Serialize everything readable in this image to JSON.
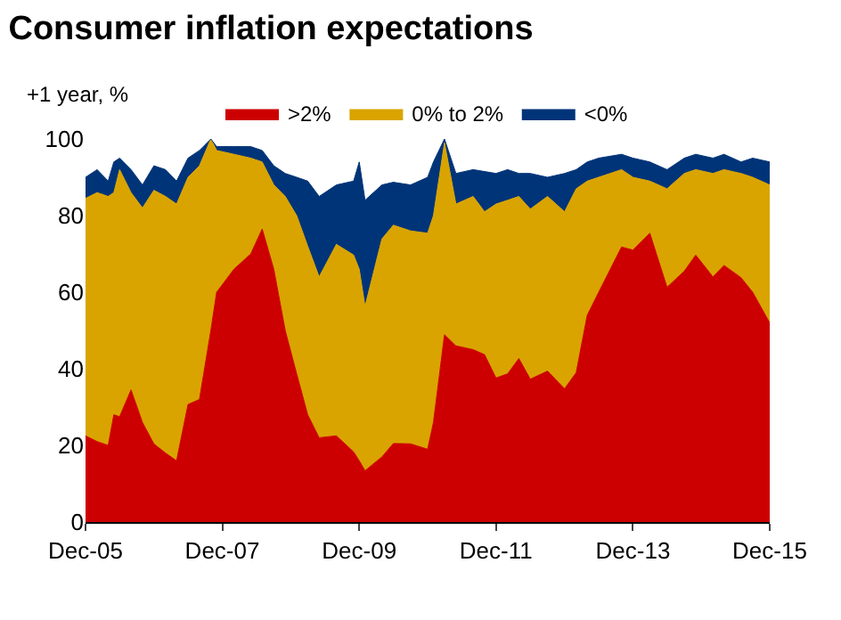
{
  "chart_data": {
    "type": "area",
    "stacked": true,
    "title": "Consumer inflation expectations",
    "ylabel": "+1 year, %",
    "x": [
      "2005-12",
      "2006-02",
      "2006-04",
      "2006-05",
      "2006-06",
      "2006-08",
      "2006-10",
      "2006-12",
      "2007-02",
      "2007-04",
      "2007-06",
      "2007-08",
      "2007-10",
      "2007-11",
      "2008-02",
      "2008-05",
      "2008-07",
      "2008-09",
      "2008-11",
      "2009-01",
      "2009-03",
      "2009-05",
      "2009-08",
      "2009-11",
      "2009-12",
      "2010-01",
      "2010-04",
      "2010-06",
      "2010-09",
      "2010-12",
      "2011-01",
      "2011-03",
      "2011-05",
      "2011-08",
      "2011-10",
      "2011-12",
      "2012-02",
      "2012-04",
      "2012-06",
      "2012-09",
      "2012-12",
      "2013-02",
      "2013-04",
      "2013-06",
      "2013-10",
      "2013-12",
      "2014-03",
      "2014-06",
      "2014-09",
      "2014-11",
      "2015-02",
      "2015-04",
      "2015-07",
      "2015-09",
      "2015-12"
    ],
    "series": [
      {
        "name": ">2%",
        "color": "#cc0000",
        "values": [
          22.5,
          21,
          20,
          28,
          27.5,
          34.5,
          26,
          20.4,
          18,
          16,
          30.7,
          32,
          50,
          60,
          66,
          70,
          76.5,
          66,
          50,
          38.7,
          28,
          22,
          22.5,
          18.3,
          16,
          13.4,
          17,
          20.5,
          20.4,
          19,
          26,
          48.9,
          46,
          45,
          43.7,
          37.6,
          38.7,
          42.7,
          37.3,
          39.4,
          34.8,
          39,
          54,
          60,
          71.8,
          71,
          75.4,
          61.3,
          65.5,
          69.7,
          64,
          67,
          63.8,
          60,
          52
        ]
      },
      {
        "name": "0% to 2%",
        "color": "#d9a400",
        "values": [
          62,
          65,
          65,
          58,
          64.5,
          51.5,
          56,
          66.2,
          67,
          67,
          59.3,
          61,
          50,
          37,
          30,
          25,
          17.5,
          22,
          35,
          41.3,
          44,
          42,
          50,
          51.4,
          50,
          42.9,
          56.9,
          57,
          55.6,
          56.4,
          54,
          50.1,
          37,
          40,
          37.3,
          45.4,
          45.3,
          42.3,
          44.4,
          45.6,
          46.2,
          48,
          35,
          30,
          20.2,
          19,
          13.6,
          25.7,
          25.5,
          22.3,
          27,
          25,
          27.2,
          30,
          36
        ]
      },
      {
        "name": "<0%",
        "color": "#003478",
        "values": [
          5.5,
          6,
          4,
          8,
          3,
          6,
          6,
          6.4,
          7,
          6,
          5,
          4,
          0,
          1,
          2,
          3,
          3,
          5,
          6,
          10,
          17,
          21,
          15.5,
          19.3,
          28,
          27.7,
          14.1,
          11.2,
          12,
          14.6,
          14,
          1,
          8,
          7,
          10.5,
          8,
          8,
          6,
          9.3,
          5,
          10,
          5,
          5,
          5,
          4,
          5,
          5,
          5,
          4,
          4,
          4,
          4,
          3,
          5,
          6
        ]
      }
    ],
    "xlim": [
      "2005-12",
      "2015-12"
    ],
    "xticks": [
      {
        "value": "2005-12",
        "label": "Dec-05"
      },
      {
        "value": "2007-12",
        "label": "Dec-07"
      },
      {
        "value": "2009-12",
        "label": "Dec-09"
      },
      {
        "value": "2011-12",
        "label": "Dec-11"
      },
      {
        "value": "2013-12",
        "label": "Dec-13"
      },
      {
        "value": "2015-12",
        "label": "Dec-15"
      }
    ],
    "ylim": [
      0,
      100
    ],
    "yticks": [
      0,
      20,
      40,
      60,
      80,
      100
    ],
    "legend": "top"
  }
}
